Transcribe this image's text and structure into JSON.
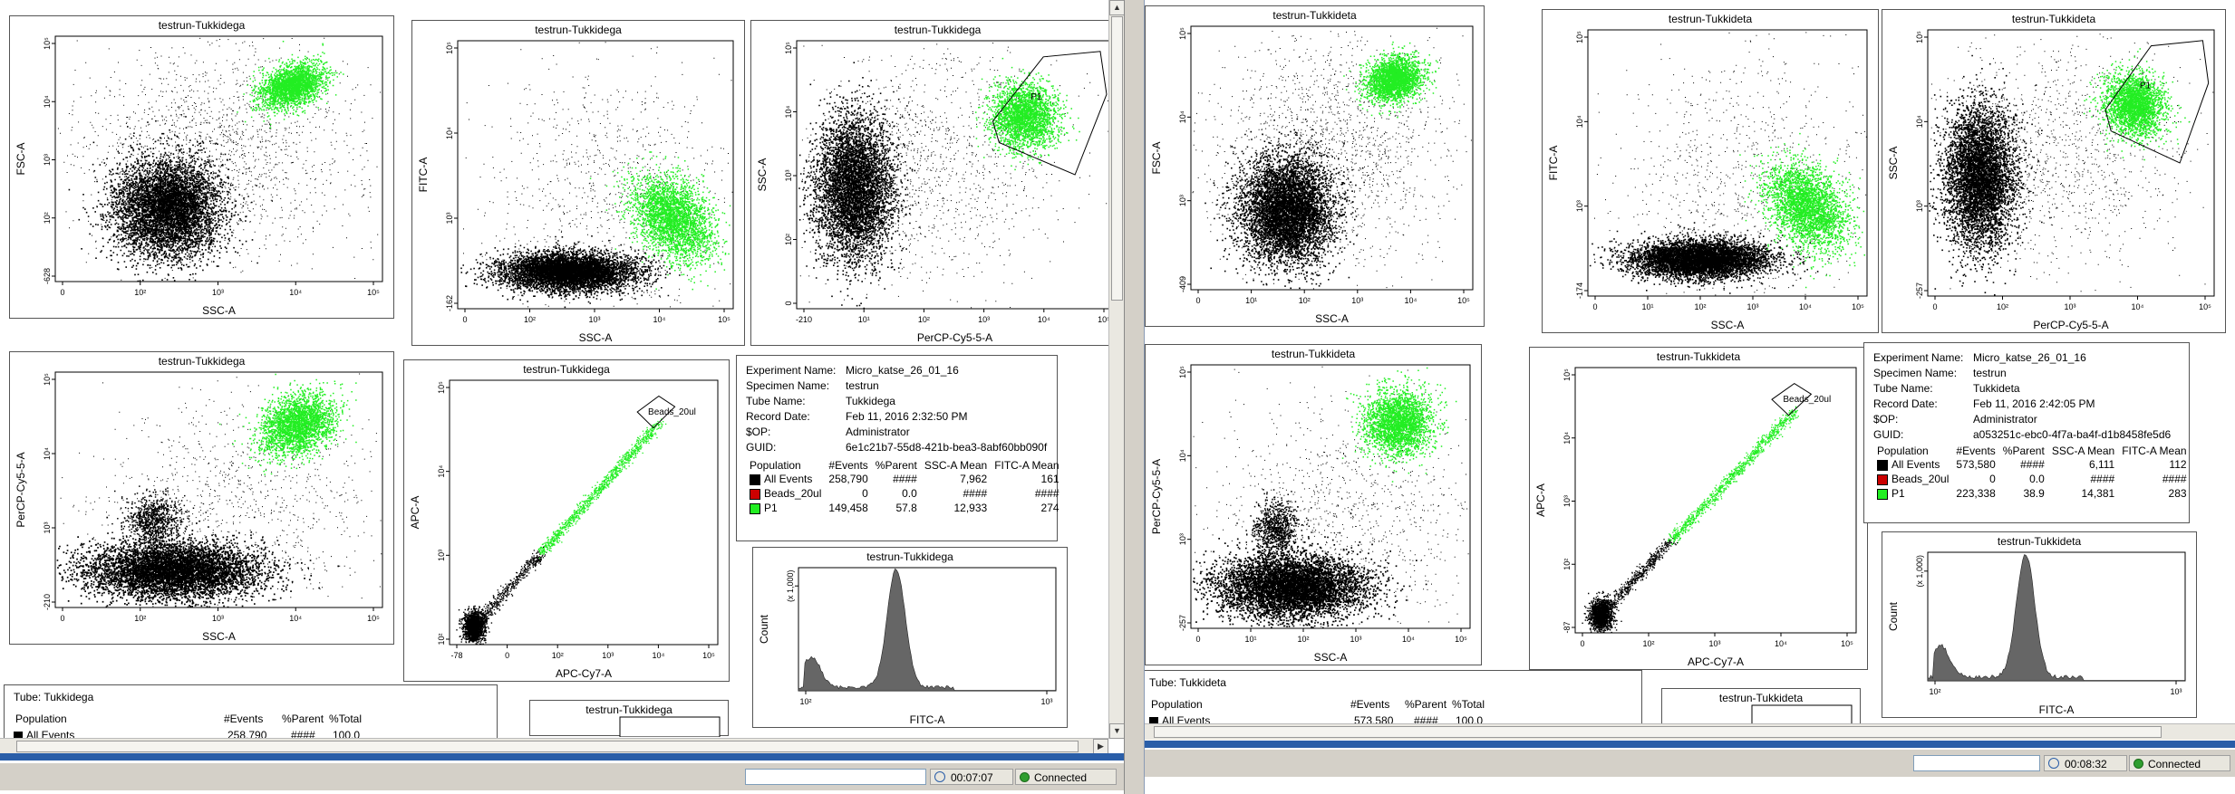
{
  "colors": {
    "events": "#000000",
    "beads": "#cc0000",
    "p1": "#22ee22",
    "hist": "#666666",
    "gate": "#000000"
  },
  "left": {
    "plots": [
      {
        "title": "testrun-Tukkidega",
        "xlabel": "SSC-A",
        "ylabel": "FSC-A",
        "yticks": [
          "-628",
          "10²",
          "10³",
          "10⁴",
          "10⁵"
        ],
        "xticks": [
          "0",
          "10²",
          "10³",
          "10⁴",
          "10⁵"
        ]
      },
      {
        "title": "testrun-Tukkidega",
        "xlabel": "SSC-A",
        "ylabel": "FITC-A",
        "yticks": [
          "-162",
          "10³",
          "10⁴",
          "10⁵"
        ],
        "xticks": [
          "0",
          "10²",
          "10³",
          "10⁴",
          "10⁵"
        ]
      },
      {
        "title": "testrun-Tukkidega",
        "xlabel": "PerCP-Cy5-5-A",
        "ylabel": "SSC-A",
        "yticks": [
          "0",
          "10²",
          "10³",
          "10⁴",
          "10⁵"
        ],
        "xticks": [
          "-210",
          "10¹",
          "10²",
          "10³",
          "10⁴",
          "10⁵"
        ],
        "gate": "P1"
      },
      {
        "title": "testrun-Tukkidega",
        "xlabel": "SSC-A",
        "ylabel": "PerCP-Cy5-5-A",
        "yticks": [
          "-210",
          "10³",
          "10⁴",
          "10⁵"
        ],
        "xticks": [
          "0",
          "10²",
          "10³",
          "10⁴",
          "10⁵"
        ]
      },
      {
        "title": "testrun-Tukkidega",
        "xlabel": "APC-Cy7-A",
        "ylabel": "APC-A",
        "yticks": [
          "10²",
          "10³",
          "10⁴",
          "10⁵"
        ],
        "xticks": [
          "-78",
          "0",
          "10²",
          "10³",
          "10⁴",
          "10⁵"
        ],
        "gate": "Beads_20ul"
      },
      {
        "title": "testrun-Tukkidega",
        "xlabel": "FITC-A",
        "ylabel": "Count",
        "yticks": [
          "(x 1,000)"
        ],
        "xticks": [
          "10²",
          "10³"
        ]
      },
      {
        "title": "testrun-Tukkidega",
        "xlabel": "",
        "ylabel": "",
        "yticks": [],
        "xticks": []
      }
    ],
    "stats": {
      "meta": [
        {
          "k": "Experiment Name:",
          "v": "Micro_katse_26_01_16"
        },
        {
          "k": "Specimen Name:",
          "v": "testrun"
        },
        {
          "k": "Tube Name:",
          "v": "Tukkidega"
        },
        {
          "k": "Record Date:",
          "v": "Feb 11, 2016 2:32:50 PM"
        },
        {
          "k": "$OP:",
          "v": "Administrator"
        },
        {
          "k": "GUID:",
          "v": "6e1c21b7-55d8-421b-bea3-8abf60bb090f"
        }
      ],
      "headers": [
        "Population",
        "#Events",
        "%Parent",
        "SSC-A Mean",
        "FITC-A Mean"
      ],
      "rows": [
        {
          "name": "All Events",
          "events": "258,790",
          "parent": "####",
          "ssc": "7,962",
          "fitc": "161"
        },
        {
          "name": "Beads_20ul",
          "events": "0",
          "parent": "0.0",
          "ssc": "####",
          "fitc": "####"
        },
        {
          "name": "P1",
          "events": "149,458",
          "parent": "57.8",
          "ssc": "12,933",
          "fitc": "274"
        }
      ]
    },
    "tube": {
      "label": "Tube:  Tukkidega",
      "headers": [
        "Population",
        "#Events",
        "%Parent",
        "%Total"
      ],
      "partial": [
        "All Events",
        "258,790",
        "####",
        "100.0"
      ]
    },
    "clock": "00:07:07",
    "status": "Connected"
  },
  "right": {
    "plots": [
      {
        "title": "testrun-Tukkideta",
        "xlabel": "SSC-A",
        "ylabel": "FSC-A",
        "yticks": [
          "-409",
          "10³",
          "10⁴",
          "10⁵"
        ],
        "xticks": [
          "0",
          "10¹",
          "10²",
          "10³",
          "10⁴",
          "10⁵"
        ]
      },
      {
        "title": "testrun-Tukkideta",
        "xlabel": "SSC-A",
        "ylabel": "FITC-A",
        "yticks": [
          "-174",
          "10³",
          "10⁴",
          "10⁵"
        ],
        "xticks": [
          "0",
          "10¹",
          "10²",
          "10³",
          "10⁴",
          "10⁵"
        ]
      },
      {
        "title": "testrun-Tukkideta",
        "xlabel": "PerCP-Cy5-5-A",
        "ylabel": "SSC-A",
        "yticks": [
          "-257",
          "10³",
          "10⁴",
          "10⁵"
        ],
        "xticks": [
          "0",
          "10²",
          "10³",
          "10⁴",
          "10⁵"
        ],
        "gate": "P1"
      },
      {
        "title": "testrun-Tukkideta",
        "xlabel": "SSC-A",
        "ylabel": "PerCP-Cy5-5-A",
        "yticks": [
          "-257",
          "10³",
          "10⁴",
          "10⁵"
        ],
        "xticks": [
          "0",
          "10¹",
          "10²",
          "10³",
          "10⁴",
          "10⁵"
        ]
      },
      {
        "title": "testrun-Tukkideta",
        "xlabel": "APC-Cy7-A",
        "ylabel": "APC-A",
        "yticks": [
          "-87",
          "10²",
          "10³",
          "10⁴",
          "10⁵"
        ],
        "xticks": [
          "0",
          "10²",
          "10³",
          "10⁴",
          "10⁵"
        ],
        "gate": "Beads_20ul"
      },
      {
        "title": "testrun-Tukkideta",
        "xlabel": "FITC-A",
        "ylabel": "Count",
        "yticks": [
          "(x 1,000)"
        ],
        "xticks": [
          "10²",
          "10³"
        ]
      },
      {
        "title": "testrun-Tukkideta",
        "xlabel": "",
        "ylabel": "",
        "yticks": [],
        "xticks": []
      }
    ],
    "stats": {
      "meta": [
        {
          "k": "Experiment Name:",
          "v": "Micro_katse_26_01_16"
        },
        {
          "k": "Specimen Name:",
          "v": "testrun"
        },
        {
          "k": "Tube Name:",
          "v": "Tukkideta"
        },
        {
          "k": "Record Date:",
          "v": "Feb 11, 2016 2:42:05 PM"
        },
        {
          "k": "$OP:",
          "v": "Administrator"
        },
        {
          "k": "GUID:",
          "v": "a053251c-ebc0-4f7a-ba4f-d1b8458fe5d6"
        }
      ],
      "headers": [
        "Population",
        "#Events",
        "%Parent",
        "SSC-A Mean",
        "FITC-A Mean"
      ],
      "rows": [
        {
          "name": "All Events",
          "events": "573,580",
          "parent": "####",
          "ssc": "6,111",
          "fitc": "112"
        },
        {
          "name": "Beads_20ul",
          "events": "0",
          "parent": "0.0",
          "ssc": "####",
          "fitc": "####"
        },
        {
          "name": "P1",
          "events": "223,338",
          "parent": "38.9",
          "ssc": "14,381",
          "fitc": "283"
        }
      ]
    },
    "tube": {
      "label": "Tube:  Tukkideta",
      "headers": [
        "Population",
        "#Events",
        "%Parent",
        "%Total"
      ],
      "partial": [
        "All Events",
        "573,580",
        "####",
        "100.0"
      ]
    },
    "clock": "00:08:32",
    "status": "Connected"
  }
}
